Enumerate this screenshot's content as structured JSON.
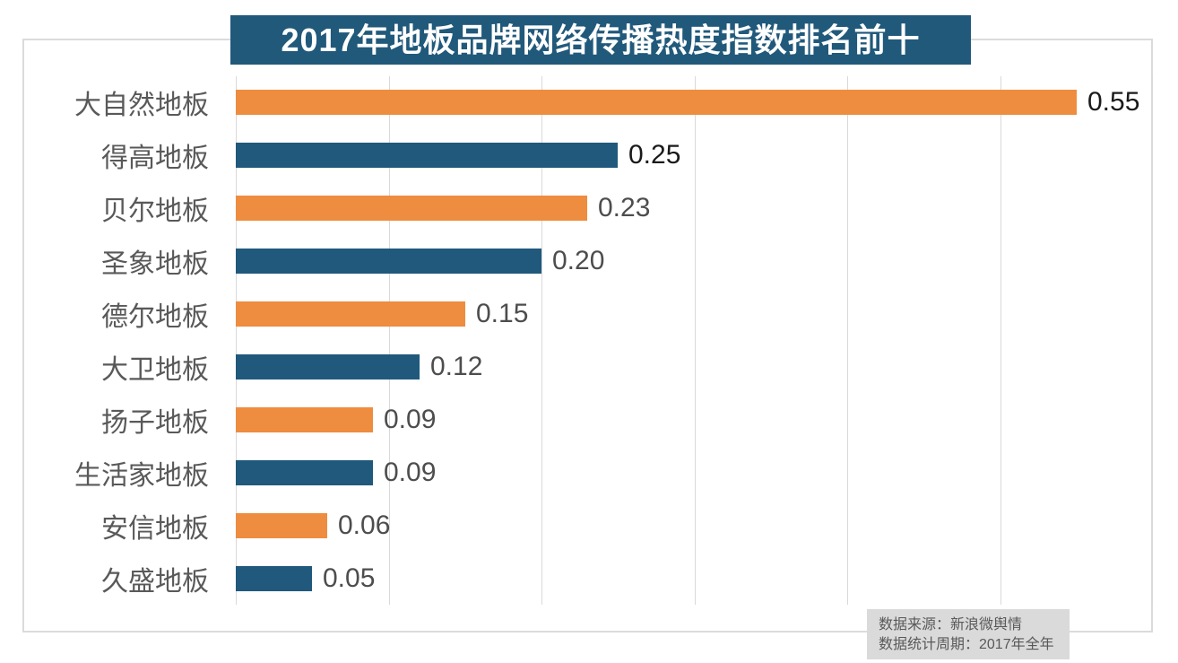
{
  "title": {
    "text": "2017年地板品牌网络传播热度指数排名前十"
  },
  "footer": {
    "source": "数据来源：新浪微舆情",
    "period": "数据统计周期：2017年全年"
  },
  "colors": {
    "orange": "#EE8C3F",
    "blue": "#20597C",
    "title_bg": "#21597B",
    "title_text": "#FFFFFF",
    "grid": "#D9D9D9",
    "frame": "#DBDBDB",
    "category_label": "#595959",
    "value_dark": "#1A1A1A",
    "value_gray": "#4D4D4D",
    "footer_bg": "#DADADA",
    "footer_text": "#595959"
  },
  "chart_data": {
    "type": "bar",
    "orientation": "horizontal",
    "title": "2017年地板品牌网络传播热度指数排名前十",
    "categories": [
      "大自然地板",
      "得高地板",
      "贝尔地板",
      "圣象地板",
      "德尔地板",
      "大卫地板",
      "扬子地板",
      "生活家地板",
      "安信地板",
      "久盛地板"
    ],
    "values": [
      0.55,
      0.25,
      0.23,
      0.2,
      0.15,
      0.12,
      0.09,
      0.09,
      0.06,
      0.05
    ],
    "value_labels": [
      "0.55",
      "0.25",
      "0.23",
      "0.20",
      "0.15",
      "0.12",
      "0.09",
      "0.09",
      "0.06",
      "0.05"
    ],
    "bar_colors": [
      "#EE8C3F",
      "#20597C",
      "#EE8C3F",
      "#20597C",
      "#EE8C3F",
      "#20597C",
      "#EE8C3F",
      "#20597C",
      "#EE8C3F",
      "#20597C"
    ],
    "value_label_colors": [
      "#1A1A1A",
      "#1A1A1A",
      "#4D4D4D",
      "#4D4D4D",
      "#4D4D4D",
      "#4D4D4D",
      "#4D4D4D",
      "#4D4D4D",
      "#4D4D4D",
      "#4D4D4D"
    ],
    "xlabel": "",
    "ylabel": "",
    "xlim": [
      0,
      0.6
    ],
    "grid": true,
    "grid_step": 0.1,
    "axis_tick_labels_visible": false,
    "legend": false,
    "source_note": [
      "数据来源：新浪微舆情",
      "数据统计周期：2017年全年"
    ]
  }
}
